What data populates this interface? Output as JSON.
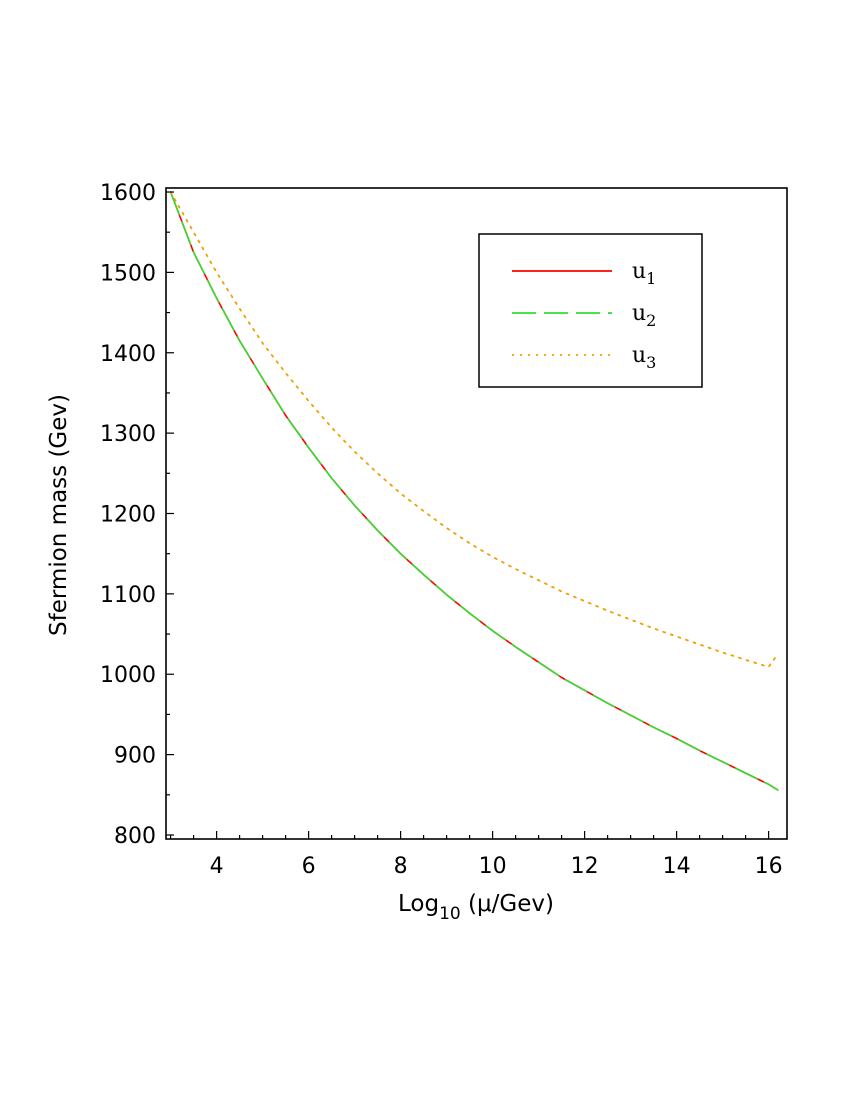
{
  "chart_data": {
    "type": "line",
    "title": "",
    "xlabel": {
      "main": "Log",
      "sub": "10",
      "rest": " (μ/Gev)"
    },
    "ylabel": "Sfermion mass (Gev)",
    "xlim": [
      2.9,
      16.4
    ],
    "ylim": [
      795,
      1605
    ],
    "xticks": [
      4,
      6,
      8,
      10,
      12,
      14,
      16
    ],
    "yticks": [
      800,
      900,
      1000,
      1100,
      1200,
      1300,
      1400,
      1500,
      1600
    ],
    "grid": false,
    "legend_position": "top-right",
    "series": [
      {
        "name": "u",
        "name_sub": "1",
        "color": "#ff0000",
        "dash": "solid",
        "x": [
          3,
          3.5,
          4,
          4.5,
          5,
          5.5,
          6,
          6.5,
          7,
          7.5,
          8,
          8.5,
          9,
          9.5,
          10,
          10.5,
          11,
          11.5,
          12,
          12.5,
          13,
          13.5,
          14,
          14.5,
          15,
          15.5,
          16,
          16.2
        ],
        "y": [
          1600,
          1525,
          1468,
          1415,
          1368,
          1322,
          1282,
          1244,
          1210,
          1179,
          1150,
          1124,
          1099,
          1076,
          1054,
          1034,
          1015,
          996,
          980,
          964,
          949,
          934,
          920,
          905,
          891,
          877,
          863,
          856
        ]
      },
      {
        "name": "u",
        "name_sub": "2",
        "color": "#33dd33",
        "dash": "dashed",
        "x": [
          3,
          3.5,
          4,
          4.5,
          5,
          5.5,
          6,
          6.5,
          7,
          7.5,
          8,
          8.5,
          9,
          9.5,
          10,
          10.5,
          11,
          11.5,
          12,
          12.5,
          13,
          13.5,
          14,
          14.5,
          15,
          15.5,
          16,
          16.2
        ],
        "y": [
          1600,
          1525,
          1468,
          1415,
          1368,
          1322,
          1282,
          1244,
          1210,
          1179,
          1150,
          1124,
          1099,
          1076,
          1054,
          1034,
          1015,
          996,
          980,
          964,
          949,
          934,
          920,
          905,
          891,
          877,
          863,
          856
        ]
      },
      {
        "name": "u",
        "name_sub": "3",
        "color": "#f0a000",
        "dash": "dotted",
        "x": [
          3,
          3.5,
          4,
          4.5,
          5,
          5.5,
          6,
          6.5,
          7,
          7.5,
          8,
          8.5,
          9,
          9.5,
          10,
          10.5,
          11,
          11.5,
          12,
          12.5,
          13,
          13.5,
          14,
          14.5,
          15,
          15.5,
          16,
          16.2
        ],
        "y": [
          1600,
          1550,
          1500,
          1455,
          1412,
          1375,
          1340,
          1307,
          1277,
          1250,
          1225,
          1203,
          1182,
          1163,
          1146,
          1131,
          1117,
          1103,
          1091,
          1079,
          1068,
          1057,
          1047,
          1037,
          1027,
          1018,
          1009,
          1025
        ]
      }
    ]
  }
}
